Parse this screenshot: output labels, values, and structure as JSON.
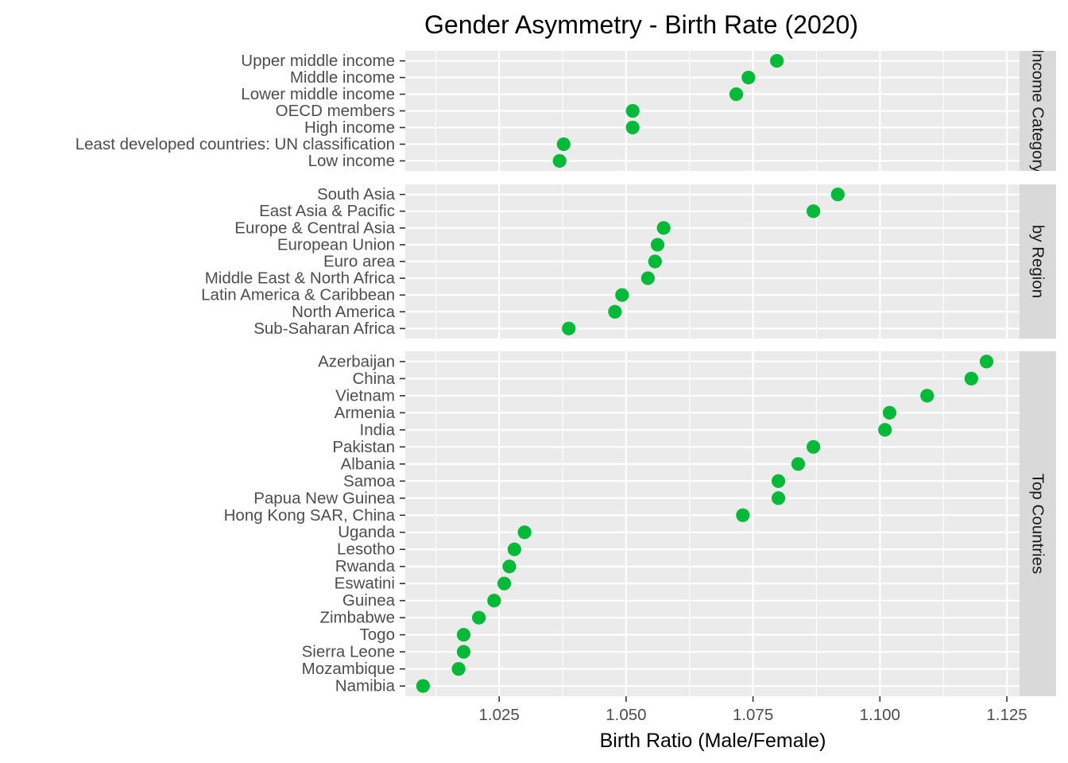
{
  "chart_data": {
    "type": "scatter",
    "title": "Gender Asymmetry - Birth Rate (2020)",
    "xlabel": "Birth Ratio (Male/Female)",
    "ylabel": "",
    "xlim": [
      1.0065,
      1.1275
    ],
    "x_ticks": [
      1.025,
      1.05,
      1.075,
      1.1,
      1.125
    ],
    "x_tick_labels": [
      "1.025",
      "1.050",
      "1.075",
      "1.100",
      "1.125"
    ],
    "grid": true,
    "point_color": "#00BA38",
    "panel_bg": "#EBEBEB",
    "strip_bg": "#D9D9D9",
    "panels": [
      {
        "strip": "Income Category",
        "categories": [
          "Upper middle income",
          "Middle income",
          "Lower middle income",
          "OECD members",
          "High income",
          "Least developed countries: UN classification",
          "Low income"
        ],
        "values": [
          1.0797,
          1.0741,
          1.0717,
          1.0513,
          1.0513,
          1.0377,
          1.0369
        ]
      },
      {
        "strip": "by Region",
        "categories": [
          "South Asia",
          "East Asia & Pacific",
          "Europe & Central Asia",
          "European Union",
          "Euro area",
          "Middle East & North Africa",
          "Latin America & Caribbean",
          "North America",
          "Sub-Saharan Africa"
        ],
        "values": [
          1.0917,
          1.0869,
          1.0574,
          1.0562,
          1.0557,
          1.0543,
          1.0492,
          1.0478,
          1.0387
        ]
      },
      {
        "strip": "Top Countries",
        "categories": [
          "Azerbaijan",
          "China",
          "Vietnam",
          "Armenia",
          "India",
          "Pakistan",
          "Albania",
          "Samoa",
          "Papua New Guinea",
          "Hong Kong SAR, China",
          "Uganda",
          "Lesotho",
          "Rwanda",
          "Eswatini",
          "Guinea",
          "Zimbabwe",
          "Togo",
          "Sierra Leone",
          "Mozambique",
          "Namibia"
        ],
        "values": [
          1.121,
          1.118,
          1.1093,
          1.1019,
          1.101,
          1.0869,
          1.0839,
          1.08,
          1.08,
          1.073,
          1.03,
          1.028,
          1.027,
          1.026,
          1.024,
          1.021,
          1.018,
          1.018,
          1.017,
          1.01
        ]
      }
    ]
  }
}
